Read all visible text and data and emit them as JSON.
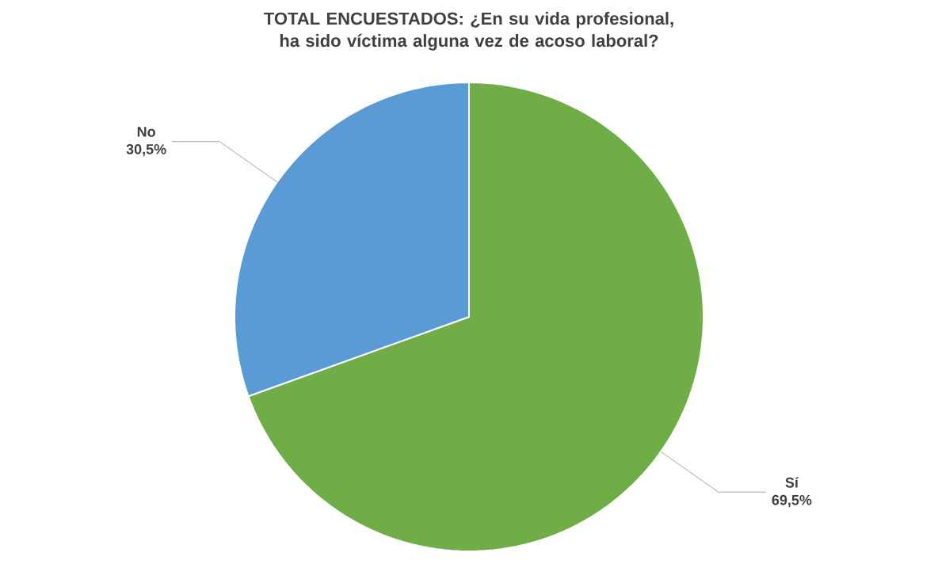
{
  "chart_data": {
    "type": "pie",
    "title": "TOTAL ENCUESTADOS: ¿En su vida profesional, ha sido víctima alguna vez de acoso laboral?",
    "categories": [
      "Sí",
      "No"
    ],
    "values": [
      69.5,
      30.5
    ],
    "value_labels": [
      "69,5%",
      "30,5%"
    ],
    "colors": [
      "#70ad47",
      "#5b9bd5"
    ]
  }
}
